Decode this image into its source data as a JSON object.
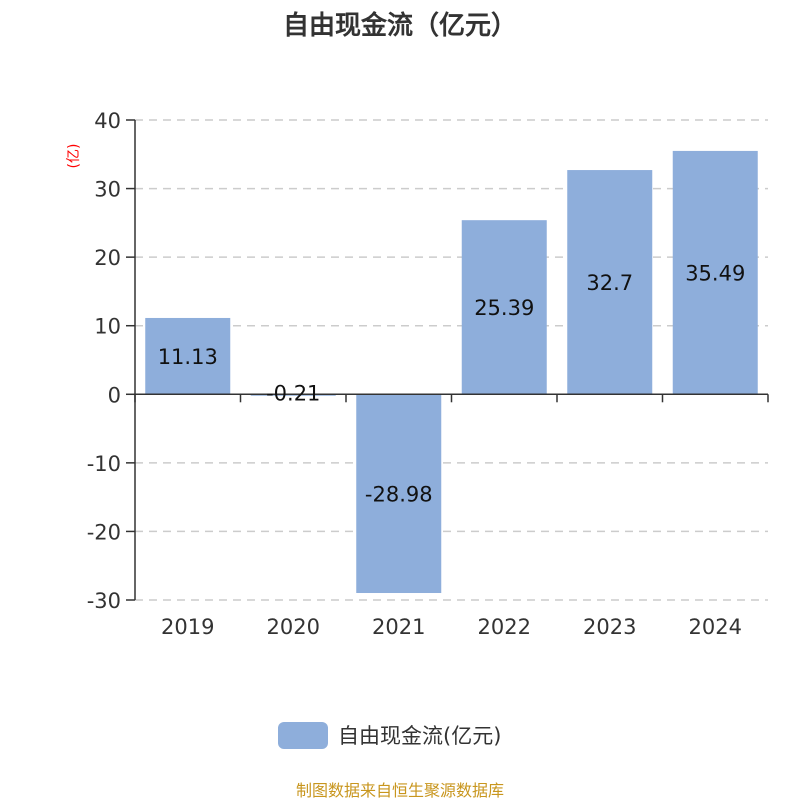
{
  "chart_data": {
    "type": "bar",
    "title": "自由现金流（亿元）",
    "ylabel": "(亿)",
    "categories": [
      "2019",
      "2020",
      "2021",
      "2022",
      "2023",
      "2024"
    ],
    "series": [
      {
        "name": "自由现金流(亿元)",
        "values": [
          11.13,
          -0.21,
          -28.98,
          25.39,
          32.7,
          35.49
        ]
      }
    ],
    "data_labels": [
      "11.13",
      "-0.21",
      "-28.98",
      "25.39",
      "32.7",
      "35.49"
    ],
    "ylim": [
      -30,
      40
    ],
    "yticks": [
      40,
      30,
      20,
      10,
      0,
      -10,
      -20,
      -30
    ],
    "grid": true,
    "legend": "bottom",
    "colors": {
      "bar": "#8eaedb",
      "ylabel": "#ff0000",
      "source": "#c8961e"
    }
  },
  "source": "制图数据来自恒生聚源数据库"
}
